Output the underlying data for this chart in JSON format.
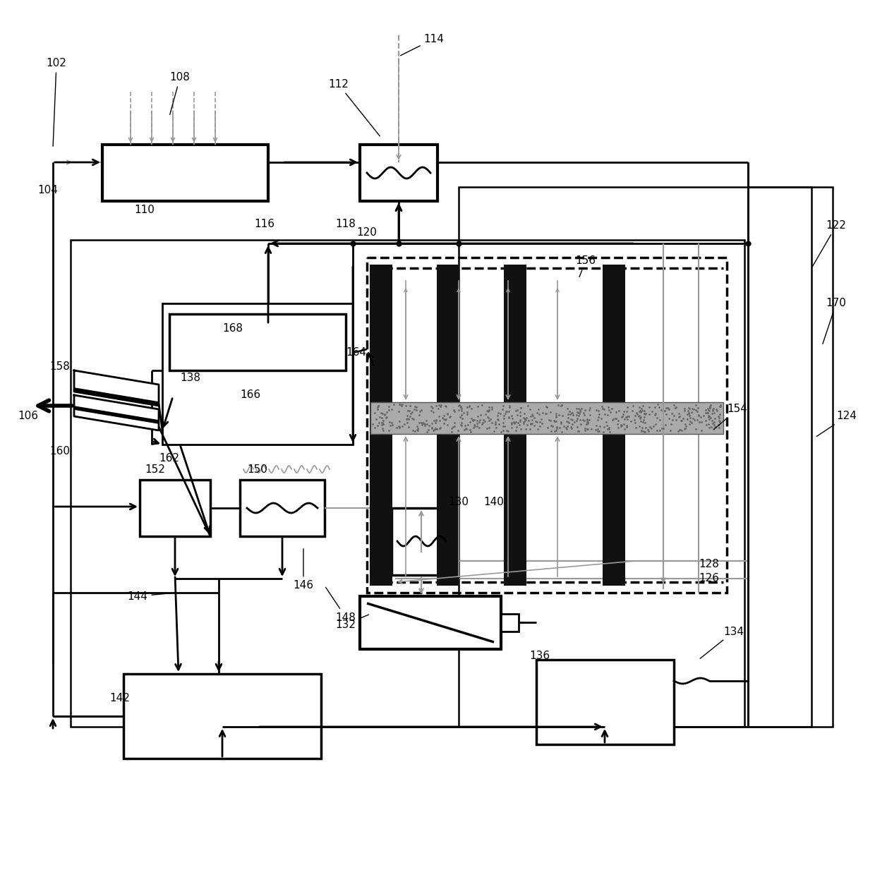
{
  "bg": "#ffffff",
  "lc": "#000000",
  "glc": "#999999",
  "lw_main": 2.0,
  "lw_thin": 1.5,
  "lw_thick": 3.0
}
